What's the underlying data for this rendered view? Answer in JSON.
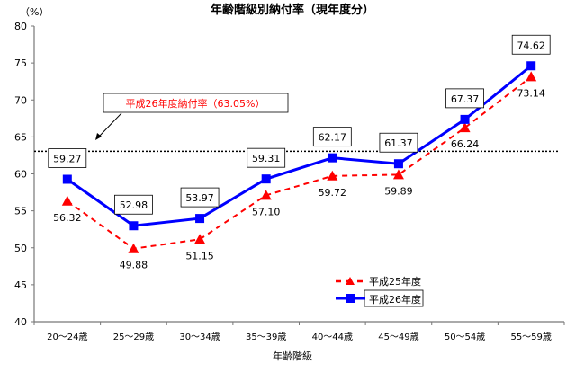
{
  "chart_data": {
    "type": "line",
    "title": "年齢階級別納付率（現年度分）",
    "ylabel": "（%）",
    "xlabel": "年齢階級",
    "ylim": [
      40,
      80
    ],
    "yticks": [
      40,
      45,
      50,
      55,
      60,
      65,
      70,
      75,
      80
    ],
    "categories": [
      "20～24歳",
      "25～29歳",
      "30～34歳",
      "35～39歳",
      "40～44歳",
      "45～49歳",
      "50～54歳",
      "55～59歳"
    ],
    "series": [
      {
        "name": "平成25年度",
        "color": "#ff0000",
        "style": "dashed",
        "marker": "triangle",
        "values": [
          56.32,
          49.88,
          51.15,
          57.1,
          59.72,
          59.89,
          66.24,
          73.14
        ],
        "labels": [
          "56.32",
          "49.88",
          "51.15",
          "57.10",
          "59.72",
          "59.89",
          "66.24",
          "73.14"
        ]
      },
      {
        "name": "平成26年度",
        "color": "#0000ff",
        "style": "solid",
        "marker": "square",
        "values": [
          59.27,
          52.98,
          53.97,
          59.31,
          62.17,
          61.37,
          67.37,
          74.62
        ],
        "labels": [
          "59.27",
          "52.98",
          "53.97",
          "59.31",
          "62.17",
          "61.37",
          "67.37",
          "74.62"
        ]
      }
    ],
    "reference_line": {
      "value": 63.05,
      "label": "平成26年度納付率（63.05%）",
      "color": "#ff0000"
    },
    "legend_position": "bottom-right",
    "grid": false
  }
}
